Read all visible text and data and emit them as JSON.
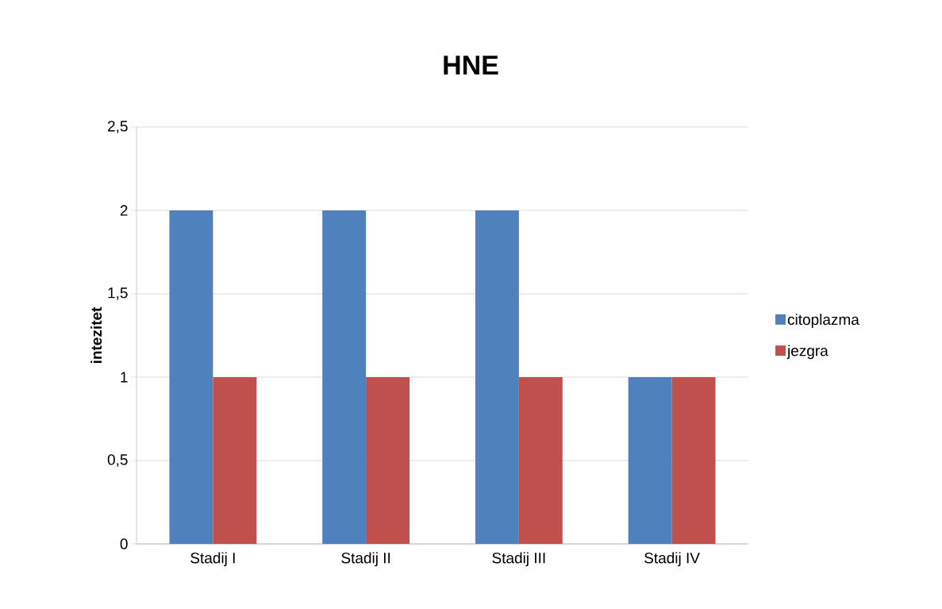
{
  "chart_data": {
    "type": "bar",
    "title": "HNE",
    "ylabel": "intezitet",
    "categories": [
      "Stadij I",
      "Stadij II",
      "Stadij III",
      "Stadij IV"
    ],
    "series": [
      {
        "name": "citoplazma",
        "color": "#4f81bd",
        "values": [
          2,
          2,
          2,
          1
        ]
      },
      {
        "name": "jezgra",
        "color": "#c0504d",
        "values": [
          1,
          1,
          1,
          1
        ]
      }
    ],
    "ylim": [
      0,
      2.5
    ],
    "yticks": [
      0,
      {
        "value": 0.5,
        "label": "0,5"
      },
      1,
      {
        "value": 1.5,
        "label": "1,5"
      },
      2,
      {
        "value": 2.5,
        "label": "2,5"
      }
    ],
    "grid": "y",
    "legend": "right"
  }
}
